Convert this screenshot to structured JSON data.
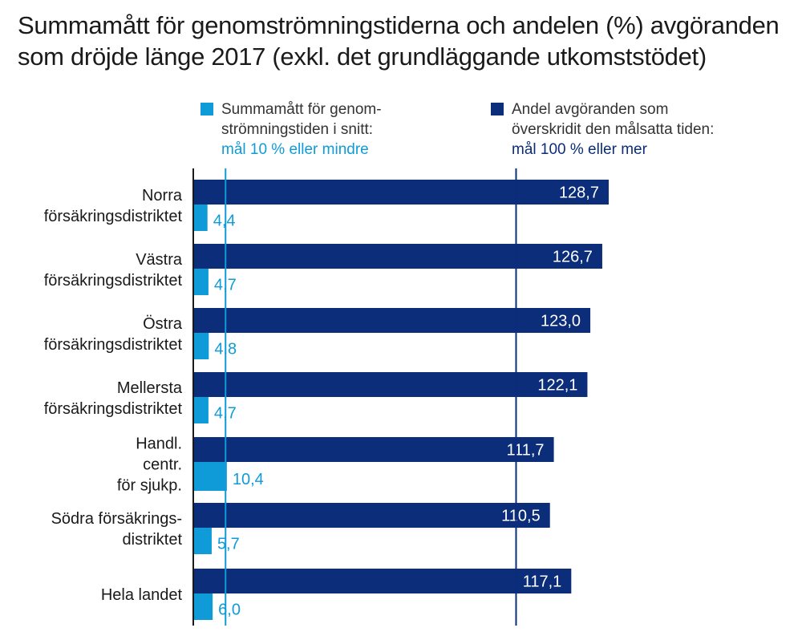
{
  "title": "Summamått för genomströmningstiderna och andelen (%) avgöranden som dröjde länge 2017 (exkl. det grundläggande utkomststödet)",
  "colors": {
    "light": "#0f9bd7",
    "dark": "#0b2d7a",
    "axis": "#1a1a1a",
    "label": "#1a1a1a"
  },
  "legend": {
    "light": {
      "line1": "Summamått för genom-",
      "line2": "strömningstiden i snitt:",
      "goal": "mål 10 % eller mindre"
    },
    "dark": {
      "line1": "Andel avgöranden som",
      "line2": "överskridit den målsatta tiden:",
      "goal": "mål 100 % eller mer"
    }
  },
  "chart_data": {
    "type": "bar",
    "orientation": "horizontal",
    "title": "Summamått för genomströmningstiderna och andelen (%) avgöranden som dröjde länge 2017 (exkl. det grundläggande utkomststödet)",
    "categories": [
      [
        "Norra",
        "försäkringsdistriktet"
      ],
      [
        "Västra",
        "försäkringsdistriktet"
      ],
      [
        "Östra",
        "försäkringsdistriktet"
      ],
      [
        "Mellersta",
        "försäkringsdistriktet"
      ],
      [
        "Handl.",
        "centr.",
        "för sjukp."
      ],
      [
        "Södra försäkrings-",
        "distriktet"
      ],
      [
        "Hela landet"
      ]
    ],
    "series": [
      {
        "name": "Andel avgöranden som överskridit den målsatta tiden",
        "key": "dark",
        "values": [
          128.7,
          126.7,
          123.0,
          122.1,
          111.7,
          110.5,
          117.1
        ],
        "labels": [
          "128,7",
          "126,7",
          "123,0",
          "122,1",
          "111,7",
          "110,5",
          "117,1"
        ],
        "target": 100
      },
      {
        "name": "Summamått för genomströmningstiden i snitt",
        "key": "light",
        "values": [
          4.4,
          4.7,
          4.8,
          4.7,
          10.4,
          5.7,
          6.0
        ],
        "labels": [
          "4,4",
          "4,7",
          "4,8",
          "4,7",
          "10,4",
          "5,7",
          "6,0"
        ],
        "target": 10
      }
    ],
    "xlim": [
      0,
      140
    ],
    "grid": false,
    "legend_position": "top"
  }
}
